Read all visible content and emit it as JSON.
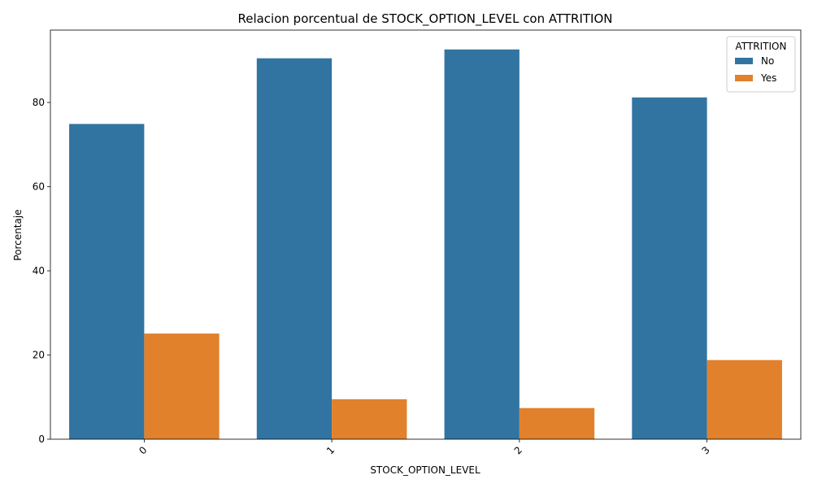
{
  "chart_data": {
    "type": "bar",
    "title": "Relacion porcentual de STOCK_OPTION_LEVEL con ATTRITION",
    "xlabel": "STOCK_OPTION_LEVEL",
    "ylabel": "Porcentaje",
    "categories": [
      "0",
      "1",
      "2",
      "3"
    ],
    "series": [
      {
        "name": "No",
        "color": "#3274a1",
        "values": [
          74.9,
          90.5,
          92.6,
          81.2
        ]
      },
      {
        "name": "Yes",
        "color": "#e1812c",
        "values": [
          25.1,
          9.5,
          7.4,
          18.8
        ]
      }
    ],
    "ylim": [
      0,
      97.2
    ],
    "yticks": [
      "0",
      "20",
      "40",
      "60",
      "80"
    ],
    "legend": {
      "title": "ATTRITION",
      "placement": "top-right"
    },
    "grid": false
  }
}
